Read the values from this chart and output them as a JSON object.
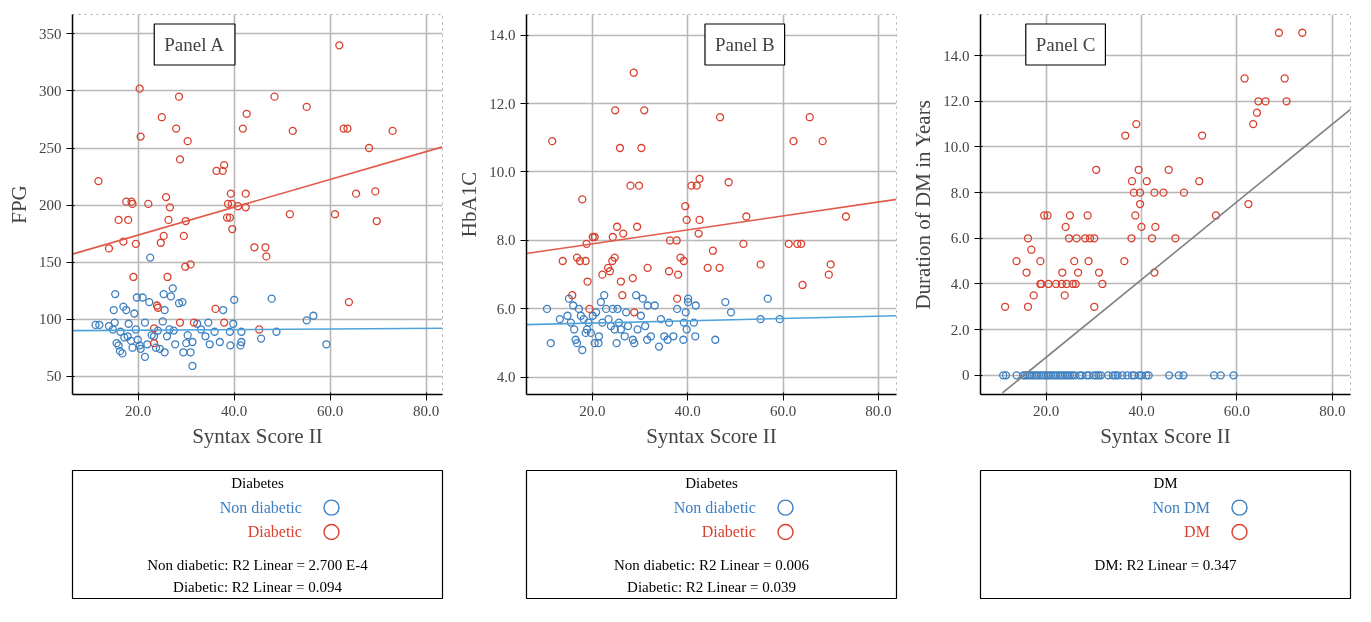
{
  "chart_data": [
    {
      "type": "scatter",
      "title": "Panel A",
      "xlabel": "Syntax Score II",
      "ylabel": "FPG",
      "legend_title": "Diabetes",
      "legend": "bottom",
      "grid": true,
      "marker": "circle",
      "xlim": [
        6.3,
        83.4
      ],
      "ylim": [
        34,
        367
      ],
      "xticks": [
        {
          "value": 20,
          "label": "20.0"
        },
        {
          "value": 40,
          "label": "40.0"
        },
        {
          "value": 60,
          "label": "60.0"
        },
        {
          "value": 80,
          "label": "80.0"
        }
      ],
      "yticks": [
        50,
        100,
        150,
        200,
        250,
        300,
        350
      ],
      "series": [
        {
          "name": "Non diabetic",
          "color": "#3d7fc1",
          "x": [
            11.1,
            11.9,
            13.9,
            15.2,
            14.9,
            15.1,
            14.7,
            15.5,
            15.9,
            16.2,
            16.7,
            16.3,
            16.9,
            17.5,
            17.1,
            17.8,
            18.0,
            18.5,
            18.8,
            19.2,
            19.5,
            19.7,
            19.9,
            20.3,
            20.5,
            20.9,
            21.4,
            21.4,
            21.9,
            22.3,
            22.5,
            22.8,
            23.3,
            23.7,
            24.1,
            24.5,
            25.1,
            25.3,
            25.5,
            25.5,
            26.0,
            26.5,
            26.8,
            27.2,
            27.4,
            27.7,
            28.5,
            29.2,
            29.4,
            30.0,
            30.3,
            30.9,
            31.3,
            31.3,
            32.3,
            33.1,
            34.0,
            34.6,
            34.9,
            35.9,
            37.0,
            37.7,
            39.1,
            39.2,
            39.8,
            40.0,
            41.5,
            41.3,
            41.5,
            45.6,
            47.8,
            48.8,
            55.1,
            56.5,
            59.2
          ],
          "values": [
            95,
            95,
            94,
            122,
            108,
            97,
            91,
            79,
            77,
            72,
            70,
            89,
            111,
            108,
            84,
            85,
            96,
            81,
            75,
            105,
            91,
            119,
            82,
            77,
            74,
            119,
            97,
            67,
            78,
            115,
            154,
            86,
            85,
            75,
            90,
            74,
            98,
            122,
            108,
            71,
            85,
            91,
            120,
            127,
            90,
            78,
            114,
            115,
            71,
            79,
            86,
            71,
            59,
            80,
            96,
            91,
            85,
            97,
            78,
            89,
            80,
            108,
            89,
            77,
            96,
            117,
            89,
            77,
            80,
            83,
            118,
            89,
            99,
            103,
            78
          ]
        },
        {
          "name": "Diabetic",
          "color": "#d9402f",
          "x": [
            11.7,
            13.9,
            15.9,
            16.9,
            17.5,
            17.9,
            18.6,
            18.8,
            19.0,
            19.5,
            20.3,
            20.5,
            22.1,
            23.9,
            24.1,
            23.3,
            23.3,
            24.9,
            24.7,
            25.3,
            25.8,
            26.1,
            26.3,
            26.6,
            27.9,
            28.5,
            28.7,
            28.7,
            29.5,
            29.8,
            29.9,
            30.3,
            30.9,
            31.6,
            36.1,
            36.3,
            37.6,
            37.9,
            37.9,
            38.5,
            39.1,
            38.7,
            39.3,
            39.5,
            39.6,
            40.8,
            41.8,
            42.4,
            42.4,
            42.6,
            44.2,
            45.2,
            46.5,
            46.7,
            48.4,
            51.6,
            52.2,
            55.1,
            61.0,
            61.9,
            62.8,
            63.6,
            63.9,
            65.4,
            68.1,
            69.4,
            69.7,
            73.0
          ],
          "values": [
            221,
            162,
            187,
            168,
            203,
            187,
            203,
            201,
            137,
            166,
            302,
            260,
            201,
            112,
            110,
            92,
            79,
            277,
            167,
            173,
            207,
            137,
            187,
            198,
            267,
            295,
            240,
            97,
            173,
            146,
            186,
            256,
            148,
            97,
            109,
            230,
            230,
            235,
            97,
            189,
            189,
            201,
            210,
            201,
            179,
            199,
            267,
            198,
            210,
            280,
            163,
            91,
            163,
            155,
            295,
            192,
            265,
            286,
            192,
            340,
            267,
            267,
            115,
            210,
            250,
            212,
            186,
            265
          ]
        },
        {
          "type": "line",
          "marker": "none",
          "color": "#4fa3d9",
          "x": [
            6.3,
            83.4
          ],
          "values": [
            90,
            92
          ]
        },
        {
          "type": "line",
          "marker": "none",
          "color": "#e05b4b",
          "x": [
            6.3,
            83.4
          ],
          "values": [
            157,
            251
          ]
        }
      ],
      "annotations": [
        "Non diabetic: R2 Linear = 2.700 E-4",
        "Diabetic: R2 Linear = 0.094"
      ]
    },
    {
      "type": "scatter",
      "title": "Panel B",
      "xlabel": "Syntax Score II",
      "ylabel": "HbA1C",
      "legend_title": "Diabetes",
      "legend": "bottom",
      "grid": true,
      "marker": "circle",
      "xlim": [
        6.2,
        83.8
      ],
      "ylim": [
        3.5,
        14.6
      ],
      "xticks": [
        {
          "value": 20,
          "label": "20.0"
        },
        {
          "value": 40,
          "label": "40.0"
        },
        {
          "value": 60,
          "label": "60.0"
        },
        {
          "value": 80,
          "label": "80.0"
        }
      ],
      "yticks": [
        {
          "value": 4,
          "label": "4.0"
        },
        {
          "value": 6,
          "label": "6.0"
        },
        {
          "value": 8,
          "label": "8.0"
        },
        {
          "value": 10,
          "label": "10.0"
        },
        {
          "value": 12,
          "label": "12.0"
        },
        {
          "value": 14,
          "label": "14.0"
        }
      ],
      "series": [
        {
          "name": "Non diabetic",
          "color": "#3d7fc1",
          "x": [
            10.5,
            11.3,
            13.2,
            14.8,
            15.1,
            15.5,
            16.0,
            16.2,
            16.5,
            16.8,
            17.2,
            17.6,
            17.9,
            18.2,
            18.6,
            18.9,
            19.2,
            19.7,
            20.1,
            20.5,
            20.8,
            21.3,
            21.4,
            21.8,
            22.1,
            22.5,
            22.9,
            23.4,
            23.9,
            24.3,
            24.7,
            25.1,
            25.3,
            25.6,
            26.0,
            26.8,
            27.1,
            27.5,
            28.5,
            28.8,
            29.2,
            29.5,
            30.2,
            30.6,
            31.1,
            31.5,
            31.6,
            32.3,
            33.1,
            34.0,
            34.4,
            35.1,
            35.8,
            36.1,
            37.0,
            37.8,
            39.1,
            39.2,
            39.6,
            39.8,
            40.1,
            40.1,
            41.3,
            41.6,
            41.7,
            45.8,
            47.9,
            49.1,
            55.3,
            56.8,
            59.3
          ],
          "values": [
            6.0,
            5.0,
            5.7,
            5.8,
            6.3,
            5.6,
            6.1,
            5.4,
            5.1,
            5.0,
            6.0,
            5.8,
            4.8,
            5.7,
            5.3,
            5.4,
            5.6,
            5.3,
            5.8,
            5.0,
            5.9,
            5.0,
            5.2,
            6.2,
            5.6,
            6.4,
            6.0,
            5.7,
            5.5,
            6.0,
            5.4,
            5.0,
            6.0,
            5.6,
            5.4,
            5.2,
            5.9,
            5.5,
            5.1,
            5.0,
            6.4,
            5.4,
            5.8,
            6.3,
            5.5,
            5.1,
            6.1,
            5.2,
            6.1,
            4.9,
            5.7,
            5.2,
            5.1,
            5.6,
            5.2,
            6.0,
            5.1,
            5.6,
            5.9,
            5.4,
            6.3,
            6.2,
            5.6,
            5.2,
            6.1,
            5.1,
            6.2,
            5.9,
            5.7,
            6.3,
            5.7
          ]
        },
        {
          "name": "Diabetic",
          "color": "#d9402f",
          "x": [
            11.6,
            13.8,
            15.8,
            16.8,
            17.4,
            17.9,
            18.6,
            18.8,
            19.0,
            19.4,
            20.1,
            20.5,
            22.1,
            23.3,
            23.7,
            24.2,
            24.3,
            24.7,
            24.8,
            25.2,
            25.8,
            26.0,
            26.3,
            26.5,
            28.0,
            28.5,
            28.7,
            28.8,
            29.4,
            29.8,
            30.3,
            30.9,
            31.6,
            36.1,
            36.3,
            37.7,
            38.0,
            37.8,
            38.5,
            39.2,
            39.5,
            39.8,
            40.8,
            41.9,
            42.3,
            42.5,
            42.5,
            44.2,
            45.3,
            46.7,
            46.8,
            48.6,
            51.7,
            52.3,
            55.3,
            61.2,
            62.2,
            63.0,
            63.8,
            64.1,
            65.6,
            68.3,
            69.6,
            70.0,
            73.2
          ],
          "values": [
            10.9,
            7.4,
            6.4,
            7.5,
            7.4,
            9.2,
            7.4,
            7.9,
            6.8,
            6.0,
            8.1,
            8.1,
            7.0,
            7.2,
            7.1,
            7.4,
            8.1,
            7.5,
            11.8,
            8.4,
            10.7,
            6.8,
            6.4,
            8.2,
            9.6,
            6.9,
            12.9,
            5.9,
            8.4,
            9.6,
            10.7,
            11.8,
            7.2,
            7.1,
            8.0,
            8.0,
            7.0,
            6.3,
            7.5,
            7.4,
            9.0,
            8.6,
            9.6,
            9.6,
            8.2,
            9.8,
            8.6,
            7.2,
            7.7,
            7.2,
            11.6,
            9.7,
            7.9,
            8.7,
            7.3,
            7.9,
            10.9,
            7.9,
            7.9,
            6.7,
            11.6,
            10.9,
            7.0,
            7.3,
            8.7
          ]
        },
        {
          "type": "line",
          "marker": "none",
          "color": "#4fa3d9",
          "x": [
            6.2,
            83.8
          ],
          "values": [
            5.54,
            5.8
          ]
        },
        {
          "type": "line",
          "marker": "none",
          "color": "#e05b4b",
          "x": [
            6.2,
            83.8
          ],
          "values": [
            7.62,
            9.2
          ]
        }
      ],
      "annotations": [
        "Non diabetic: R2 Linear = 0.006",
        "Diabetic: R2 Linear = 0.039"
      ]
    },
    {
      "type": "scatter",
      "title": "Panel C",
      "xlabel": "Syntax Score II",
      "ylabel": "Duration of DM in Years",
      "legend_title": "DM",
      "legend": "bottom",
      "grid": true,
      "marker": "circle",
      "xlim": [
        6.25,
        83.8
      ],
      "ylim": [
        -0.84,
        15.8
      ],
      "xticks": [
        {
          "value": 20,
          "label": "20.0"
        },
        {
          "value": 40,
          "label": "40.0"
        },
        {
          "value": 60,
          "label": "60.0"
        },
        {
          "value": 80,
          "label": "80.0"
        }
      ],
      "yticks": [
        0,
        {
          "value": 2,
          "label": "2.0"
        },
        {
          "value": 4,
          "label": "4.0"
        },
        {
          "value": 6,
          "label": "6.0"
        },
        {
          "value": 8,
          "label": "8.0"
        },
        {
          "value": 10,
          "label": "10.0"
        },
        {
          "value": 12,
          "label": "12.0"
        },
        {
          "value": 14,
          "label": "14.0"
        }
      ],
      "series": [
        {
          "name": "Non DM",
          "color": "#3d7fc1",
          "x": [
            11.0,
            11.6,
            13.8,
            15.2,
            15.6,
            16,
            16.5,
            17,
            17.5,
            18,
            18.5,
            19,
            19.5,
            20,
            20.5,
            21,
            21.5,
            22,
            22.5,
            23,
            23.5,
            24,
            24.5,
            25,
            25.5,
            26,
            27,
            27.5,
            28.5,
            29,
            30,
            30.5,
            31,
            31.5,
            33,
            34,
            34.5,
            35,
            36,
            37,
            38,
            38.5,
            39.5,
            40,
            41,
            41.5,
            45.8,
            47.8,
            48.8,
            55.2,
            56.6,
            59.3
          ],
          "values": [
            0,
            0,
            0,
            0,
            0,
            0,
            0,
            0,
            0,
            0,
            0,
            0,
            0,
            0,
            0,
            0,
            0,
            0,
            0,
            0,
            0,
            0,
            0,
            0,
            0,
            0,
            0,
            0,
            0,
            0,
            0,
            0,
            0,
            0,
            0,
            0,
            0,
            0,
            0,
            0,
            0,
            0,
            0,
            0,
            0,
            0,
            0,
            0,
            0,
            0,
            0,
            0
          ]
        },
        {
          "name": "DM",
          "color": "#d9402f",
          "x": [
            11.4,
            13.8,
            15.9,
            16.2,
            16.2,
            16.9,
            17.4,
            18.8,
            18.8,
            19.0,
            19.6,
            20.3,
            20.5,
            22.1,
            23.4,
            23.3,
            23.9,
            24.1,
            24.3,
            24.8,
            25.0,
            25.6,
            25.9,
            26.2,
            26.4,
            26.7,
            28.2,
            28.7,
            28.9,
            29.2,
            30.1,
            30.1,
            30.5,
            31.1,
            31.8,
            36.4,
            36.6,
            37.9,
            38.0,
            38.4,
            38.7,
            38.9,
            39.4,
            39.7,
            39.7,
            40.0,
            41.1,
            42.2,
            42.7,
            42.9,
            42.7,
            44.6,
            45.7,
            47.1,
            48.9,
            52.1,
            52.7,
            55.6,
            61.6,
            62.4,
            63.4,
            64.2,
            64.5,
            66.0,
            68.8,
            70.0,
            70.4,
            73.7
          ],
          "values": [
            3,
            5,
            4.5,
            3,
            6,
            5.5,
            3.5,
            5,
            4,
            4,
            7,
            7,
            4,
            4,
            4.5,
            4,
            3.5,
            6.5,
            4,
            6,
            7,
            4,
            5,
            4,
            6,
            4.5,
            6,
            7,
            5,
            6,
            6,
            3,
            9,
            4.5,
            4,
            5,
            10.5,
            6,
            8.5,
            8,
            7,
            11,
            9,
            8,
            7.5,
            6.5,
            8.5,
            6,
            8,
            6.5,
            4.5,
            8,
            9,
            6,
            8,
            8.5,
            10.5,
            7,
            13,
            7.5,
            11,
            11.5,
            12,
            12,
            15,
            13,
            12,
            15
          ]
        },
        {
          "type": "line",
          "marker": "none",
          "color": "#808080",
          "x": [
            10.85,
            83.8
          ],
          "values": [
            -0.77,
            11.65
          ]
        }
      ],
      "annotations": [
        "DM: R2 Linear = 0.347"
      ]
    }
  ]
}
